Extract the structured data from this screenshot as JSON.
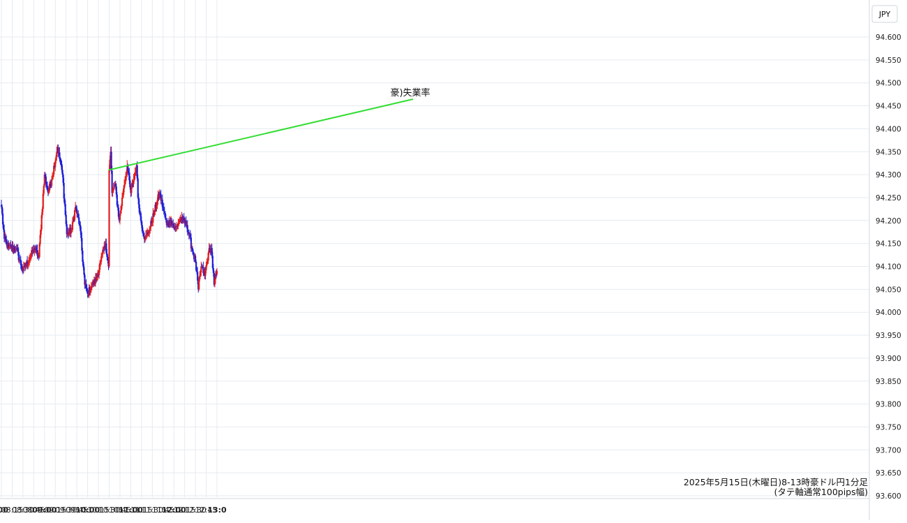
{
  "chart_data": {
    "type": "candlestick",
    "currency_label": "JPY",
    "caption_line1": "2025年5月15日(木曜日)8-13時豪ドル円1分足",
    "caption_line2": "(タテ軸通常100pips幅)",
    "annotation": {
      "text": "豪)失業率",
      "time": "10:30",
      "price": 94.31
    },
    "ylim": [
      93.6,
      94.64
    ],
    "y_ticks": [
      "94.600",
      "94.550",
      "94.500",
      "94.450",
      "94.400",
      "94.350",
      "94.300",
      "94.250",
      "94.200",
      "94.150",
      "94.100",
      "94.050",
      "94.000",
      "93.950",
      "93.900",
      "93.850",
      "93.800",
      "93.750",
      "93.700",
      "93.650",
      "93.600"
    ],
    "x_ticks": [
      {
        "label": ":00",
        "time": "08:00",
        "major": true
      },
      {
        "label": "08:15",
        "time": "08:15",
        "major": false
      },
      {
        "label": "08:30",
        "time": "08:30",
        "major": false
      },
      {
        "label": "08:45",
        "time": "08:45",
        "major": false
      },
      {
        "label": "09:00",
        "time": "09:00",
        "major": true
      },
      {
        "label": "09:15",
        "time": "09:15",
        "major": false
      },
      {
        "label": "09:30",
        "time": "09:30",
        "major": false
      },
      {
        "label": "09:45",
        "time": "09:45",
        "major": false
      },
      {
        "label": "10:00",
        "time": "10:00",
        "major": true
      },
      {
        "label": "10:15",
        "time": "10:15",
        "major": false
      },
      {
        "label": "10:30",
        "time": "10:30",
        "major": false
      },
      {
        "label": "10:45",
        "time": "10:45",
        "major": false
      },
      {
        "label": "11:00",
        "time": "11:00",
        "major": true
      },
      {
        "label": "11:15",
        "time": "11:15",
        "major": false
      },
      {
        "label": "11:30",
        "time": "11:30",
        "major": false
      },
      {
        "label": "11:45",
        "time": "11:45",
        "major": false
      },
      {
        "label": "12:00",
        "time": "12:00",
        "major": true
      },
      {
        "label": "12:15",
        "time": "12:15",
        "major": false
      },
      {
        "label": "12:30",
        "time": "12:30",
        "major": false
      },
      {
        "label": "12:45",
        "time": "12:45",
        "major": false
      },
      {
        "label": "13:0",
        "time": "13:00",
        "major": true
      }
    ],
    "series_anchor_times": [
      "08:00",
      "08:04",
      "08:10",
      "08:20",
      "08:30",
      "08:40",
      "08:46",
      "08:52",
      "09:00",
      "09:05",
      "09:10",
      "09:18",
      "09:25",
      "09:31",
      "09:38",
      "09:43",
      "09:49",
      "09:56",
      "10:00",
      "10:06",
      "10:12",
      "10:18",
      "10:25",
      "10:29",
      "10:30",
      "10:32",
      "10:34",
      "10:38",
      "10:44",
      "10:50",
      "10:55",
      "11:00",
      "11:04",
      "11:08",
      "11:10",
      "11:15",
      "11:20",
      "11:26",
      "11:33",
      "11:40",
      "11:46",
      "11:50",
      "11:56",
      "12:02",
      "12:08",
      "12:12",
      "12:18",
      "12:25",
      "12:30",
      "12:34",
      "12:38",
      "12:43",
      "12:48",
      "12:52",
      "12:56",
      "13:00"
    ],
    "series_anchor_closes": [
      94.23,
      94.16,
      94.14,
      94.14,
      94.09,
      94.12,
      94.14,
      94.12,
      94.3,
      94.26,
      94.29,
      94.36,
      94.3,
      94.17,
      94.18,
      94.23,
      94.19,
      94.06,
      94.04,
      94.06,
      94.07,
      94.11,
      94.15,
      94.1,
      94.31,
      94.35,
      94.26,
      94.28,
      94.2,
      94.27,
      94.32,
      94.26,
      94.29,
      94.32,
      94.25,
      94.19,
      94.16,
      94.18,
      94.22,
      94.26,
      94.22,
      94.19,
      94.2,
      94.18,
      94.2,
      94.2,
      94.19,
      94.14,
      94.11,
      94.05,
      94.1,
      94.08,
      94.13,
      94.14,
      94.06,
      94.09
    ],
    "candle_colors": {
      "up": "#e31b1b",
      "down": "#1f1fd6",
      "wick_up": "#e31b1b",
      "wick_down": "#1f1fd6"
    },
    "annotation_line_color": "#33dd33"
  }
}
